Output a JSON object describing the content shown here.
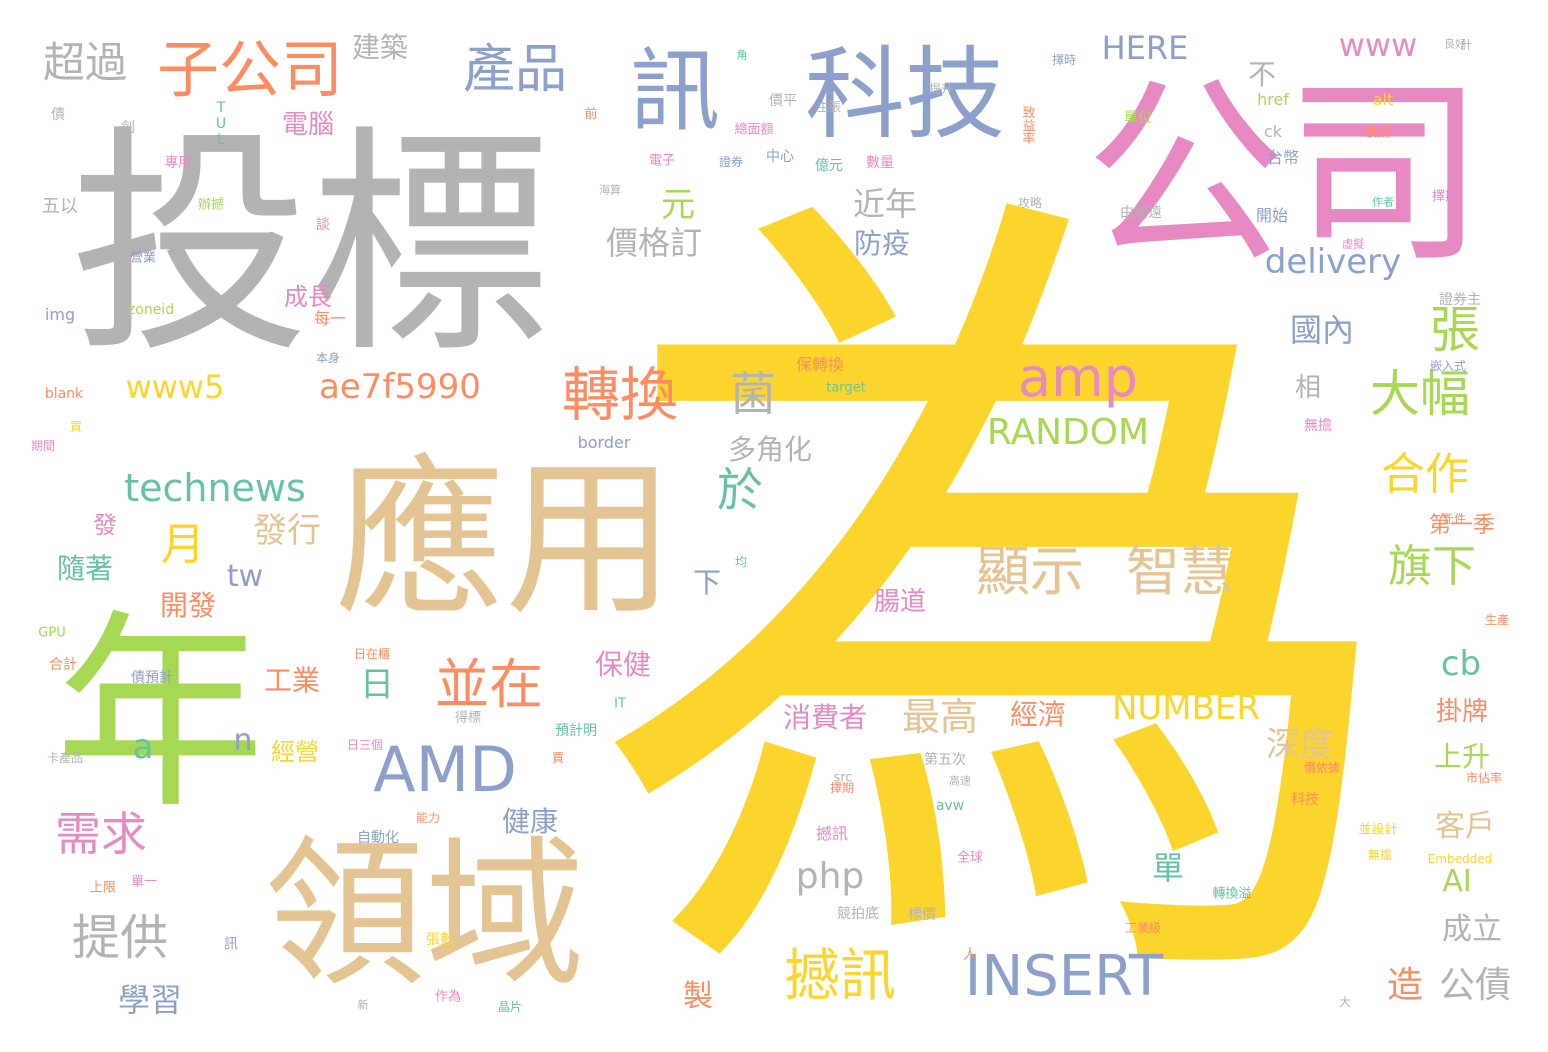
{
  "word_cloud": {
    "palette": {
      "yellow": "#FCD52C",
      "gray": "#B3B3B3",
      "pink": "#E78AC3",
      "tan": "#E5C494",
      "green": "#A6D854",
      "blue": "#8DA0CB",
      "teal": "#66C2A5",
      "orange": "#FC8D62"
    },
    "words": [
      {
        "text": "為",
        "color": "yellow"
      },
      {
        "text": "投標",
        "color": "gray"
      },
      {
        "text": "公司",
        "color": "pink"
      },
      {
        "text": "應用",
        "color": "tan"
      },
      {
        "text": "年",
        "color": "green"
      },
      {
        "text": "領域",
        "color": "tan"
      },
      {
        "text": "科技",
        "color": "blue"
      },
      {
        "text": "訊",
        "color": "blue"
      },
      {
        "text": "子公司",
        "color": "orange"
      },
      {
        "text": "產品",
        "color": "blue"
      },
      {
        "text": "超過",
        "color": "gray"
      },
      {
        "text": "建築",
        "color": "gray"
      },
      {
        "text": "HERE",
        "color": "blue"
      },
      {
        "text": "www",
        "color": "pink"
      },
      {
        "text": "不",
        "color": "gray"
      },
      {
        "text": "電腦",
        "color": "pink"
      },
      {
        "text": "元",
        "color": "green"
      },
      {
        "text": "近年",
        "color": "gray"
      },
      {
        "text": "價格訂",
        "color": "gray"
      },
      {
        "text": "防疫",
        "color": "blue"
      },
      {
        "text": "delivery",
        "color": "blue"
      },
      {
        "text": "張",
        "color": "green"
      },
      {
        "text": "國內",
        "color": "blue"
      },
      {
        "text": "amp",
        "color": "pink"
      },
      {
        "text": "大幅",
        "color": "green"
      },
      {
        "text": "轉換",
        "color": "orange"
      },
      {
        "text": "菌",
        "color": "gray"
      },
      {
        "text": "www5",
        "color": "yellow"
      },
      {
        "text": "ae7f5990",
        "color": "orange"
      },
      {
        "text": "成長",
        "color": "pink"
      },
      {
        "text": "RANDOM",
        "color": "green"
      },
      {
        "text": "相",
        "color": "gray"
      },
      {
        "text": "多角化",
        "color": "gray"
      },
      {
        "text": "合作",
        "color": "yellow"
      },
      {
        "text": "technews",
        "color": "teal"
      },
      {
        "text": "於",
        "color": "teal"
      },
      {
        "text": "月",
        "color": "yellow"
      },
      {
        "text": "發行",
        "color": "tan"
      },
      {
        "text": "顯示",
        "color": "tan"
      },
      {
        "text": "智慧",
        "color": "tan"
      },
      {
        "text": "旗下",
        "color": "green"
      },
      {
        "text": "第一季",
        "color": "orange"
      },
      {
        "text": "發",
        "color": "pink"
      },
      {
        "text": "隨著",
        "color": "teal"
      },
      {
        "text": "tw",
        "color": "blue"
      },
      {
        "text": "開發",
        "color": "orange"
      },
      {
        "text": "下",
        "color": "blue"
      },
      {
        "text": "腸道",
        "color": "pink"
      },
      {
        "text": "工業",
        "color": "orange"
      },
      {
        "text": "日",
        "color": "teal"
      },
      {
        "text": "並在",
        "color": "orange"
      },
      {
        "text": "保健",
        "color": "pink"
      },
      {
        "text": "cb",
        "color": "teal"
      },
      {
        "text": "掛牌",
        "color": "orange"
      },
      {
        "text": "a",
        "color": "teal"
      },
      {
        "text": "n",
        "color": "blue"
      },
      {
        "text": "經營",
        "color": "yellow"
      },
      {
        "text": "AMD",
        "color": "blue"
      },
      {
        "text": "消費者",
        "color": "pink"
      },
      {
        "text": "最高",
        "color": "tan"
      },
      {
        "text": "經濟",
        "color": "orange"
      },
      {
        "text": "NUMBER",
        "color": "yellow"
      },
      {
        "text": "深度",
        "color": "tan"
      },
      {
        "text": "上升",
        "color": "green"
      },
      {
        "text": "需求",
        "color": "pink"
      },
      {
        "text": "健康",
        "color": "blue"
      },
      {
        "text": "單",
        "color": "teal"
      },
      {
        "text": "客戶",
        "color": "tan"
      },
      {
        "text": "php",
        "color": "gray"
      },
      {
        "text": "AI",
        "color": "green"
      },
      {
        "text": "提供",
        "color": "gray"
      },
      {
        "text": "成立",
        "color": "gray"
      },
      {
        "text": "撼訊",
        "color": "yellow"
      },
      {
        "text": "INSERT",
        "color": "blue"
      },
      {
        "text": "學習",
        "color": "blue"
      },
      {
        "text": "製",
        "color": "orange"
      },
      {
        "text": "造",
        "color": "orange"
      },
      {
        "text": "公債",
        "color": "gray"
      },
      {
        "text": "債",
        "color": "gray"
      },
      {
        "text": "創",
        "color": "gray"
      },
      {
        "text": "TUL",
        "color": "teal"
      },
      {
        "text": "專用",
        "color": "pink"
      },
      {
        "text": "辦撼",
        "color": "green"
      },
      {
        "text": "五以",
        "color": "gray"
      },
      {
        "text": "談",
        "color": "pink"
      },
      {
        "text": "營業",
        "color": "blue"
      },
      {
        "text": "zoneid",
        "color": "green"
      },
      {
        "text": "每一",
        "color": "orange"
      },
      {
        "text": "img",
        "color": "blue"
      },
      {
        "text": "blank",
        "color": "orange"
      },
      {
        "text": "保轉換",
        "color": "orange"
      },
      {
        "text": "target",
        "color": "teal"
      },
      {
        "text": "border",
        "color": "blue"
      },
      {
        "text": "href",
        "color": "green"
      },
      {
        "text": "alt",
        "color": "yellow"
      },
      {
        "text": "中心",
        "color": "blue"
      },
      {
        "text": "億元",
        "color": "teal"
      },
      {
        "text": "數量",
        "color": "pink"
      },
      {
        "text": "台幣",
        "color": "blue"
      },
      {
        "text": "單位",
        "color": "green"
      },
      {
        "text": "ck",
        "color": "gray"
      },
      {
        "text": "由宏遠",
        "color": "gray"
      },
      {
        "text": "開始",
        "color": "blue"
      },
      {
        "text": "證券主",
        "color": "gray"
      },
      {
        "text": "無擔",
        "color": "pink"
      },
      {
        "text": "價平",
        "color": "gray"
      },
      {
        "text": "總面額",
        "color": "pink"
      },
      {
        "text": "電子",
        "color": "pink"
      },
      {
        "text": "前",
        "color": "orange"
      },
      {
        "text": "自動化",
        "color": "blue"
      },
      {
        "text": "合計",
        "color": "orange"
      },
      {
        "text": "GPU",
        "color": "green"
      },
      {
        "text": "上限",
        "color": "orange"
      },
      {
        "text": "單一",
        "color": "pink"
      },
      {
        "text": "訊",
        "color": "blue"
      },
      {
        "text": "張數",
        "color": "yellow"
      },
      {
        "text": "作為",
        "color": "pink"
      },
      {
        "text": "晶片",
        "color": "teal"
      },
      {
        "text": "人",
        "color": "orange"
      },
      {
        "text": "大",
        "color": "gray"
      },
      {
        "text": "卡產品",
        "color": "gray"
      },
      {
        "text": "債預計",
        "color": "blue"
      },
      {
        "text": "日在櫃",
        "color": "orange"
      },
      {
        "text": "日三個",
        "color": "pink"
      },
      {
        "text": "得標",
        "color": "gray"
      },
      {
        "text": "預計明",
        "color": "teal"
      },
      {
        "text": "第五次",
        "color": "gray"
      },
      {
        "text": "src",
        "color": "gray"
      },
      {
        "text": "avw",
        "color": "teal"
      },
      {
        "text": "撼訊",
        "color": "pink"
      },
      {
        "text": "競拍底",
        "color": "gray"
      },
      {
        "text": "標價",
        "color": "gray"
      },
      {
        "text": "轉換溢",
        "color": "teal"
      },
      {
        "text": "工業級",
        "color": "orange"
      },
      {
        "text": "Embedded",
        "color": "yellow"
      },
      {
        "text": "價依據",
        "color": "orange"
      },
      {
        "text": "並設計",
        "color": "yellow"
      },
      {
        "text": "無擔",
        "color": "yellow"
      },
      {
        "text": "科技",
        "color": "orange"
      },
      {
        "text": "市佔率",
        "color": "orange"
      },
      {
        "text": "全球",
        "color": "pink"
      },
      {
        "text": "能力",
        "color": "orange"
      },
      {
        "text": "買",
        "color": "orange"
      },
      {
        "text": "IT",
        "color": "teal"
      },
      {
        "text": "新",
        "color": "gray"
      },
      {
        "text": "計",
        "color": "gray"
      },
      {
        "text": "敬請",
        "color": "orange"
      },
      {
        "text": "擇期",
        "color": "orange"
      },
      {
        "text": "本身",
        "color": "blue"
      },
      {
        "text": "期間",
        "color": "pink"
      },
      {
        "text": "高速",
        "color": "gray"
      },
      {
        "text": "擇時",
        "color": "blue"
      },
      {
        "text": "攻略",
        "color": "gray"
      },
      {
        "text": "作者",
        "color": "teal"
      },
      {
        "text": "擇期",
        "color": "pink"
      },
      {
        "text": "嵌入式",
        "color": "blue"
      },
      {
        "text": "元件",
        "color": "orange"
      },
      {
        "text": "生產",
        "color": "orange"
      },
      {
        "text": "良好",
        "color": "gray"
      },
      {
        "text": "角",
        "color": "teal"
      },
      {
        "text": "致益率",
        "color": "orange"
      },
      {
        "text": "海算",
        "color": "gray"
      },
      {
        "text": "買",
        "color": "yellow"
      },
      {
        "text": "主張",
        "color": "gray"
      },
      {
        "text": "虛擬",
        "color": "pink"
      },
      {
        "text": "證券",
        "color": "blue"
      },
      {
        "text": "提升",
        "color": "gray"
      },
      {
        "text": "均",
        "color": "teal"
      },
      {
        "text": "致力",
        "color": "orange"
      },
      {
        "text": "化",
        "color": "yellow"
      }
    ]
  }
}
